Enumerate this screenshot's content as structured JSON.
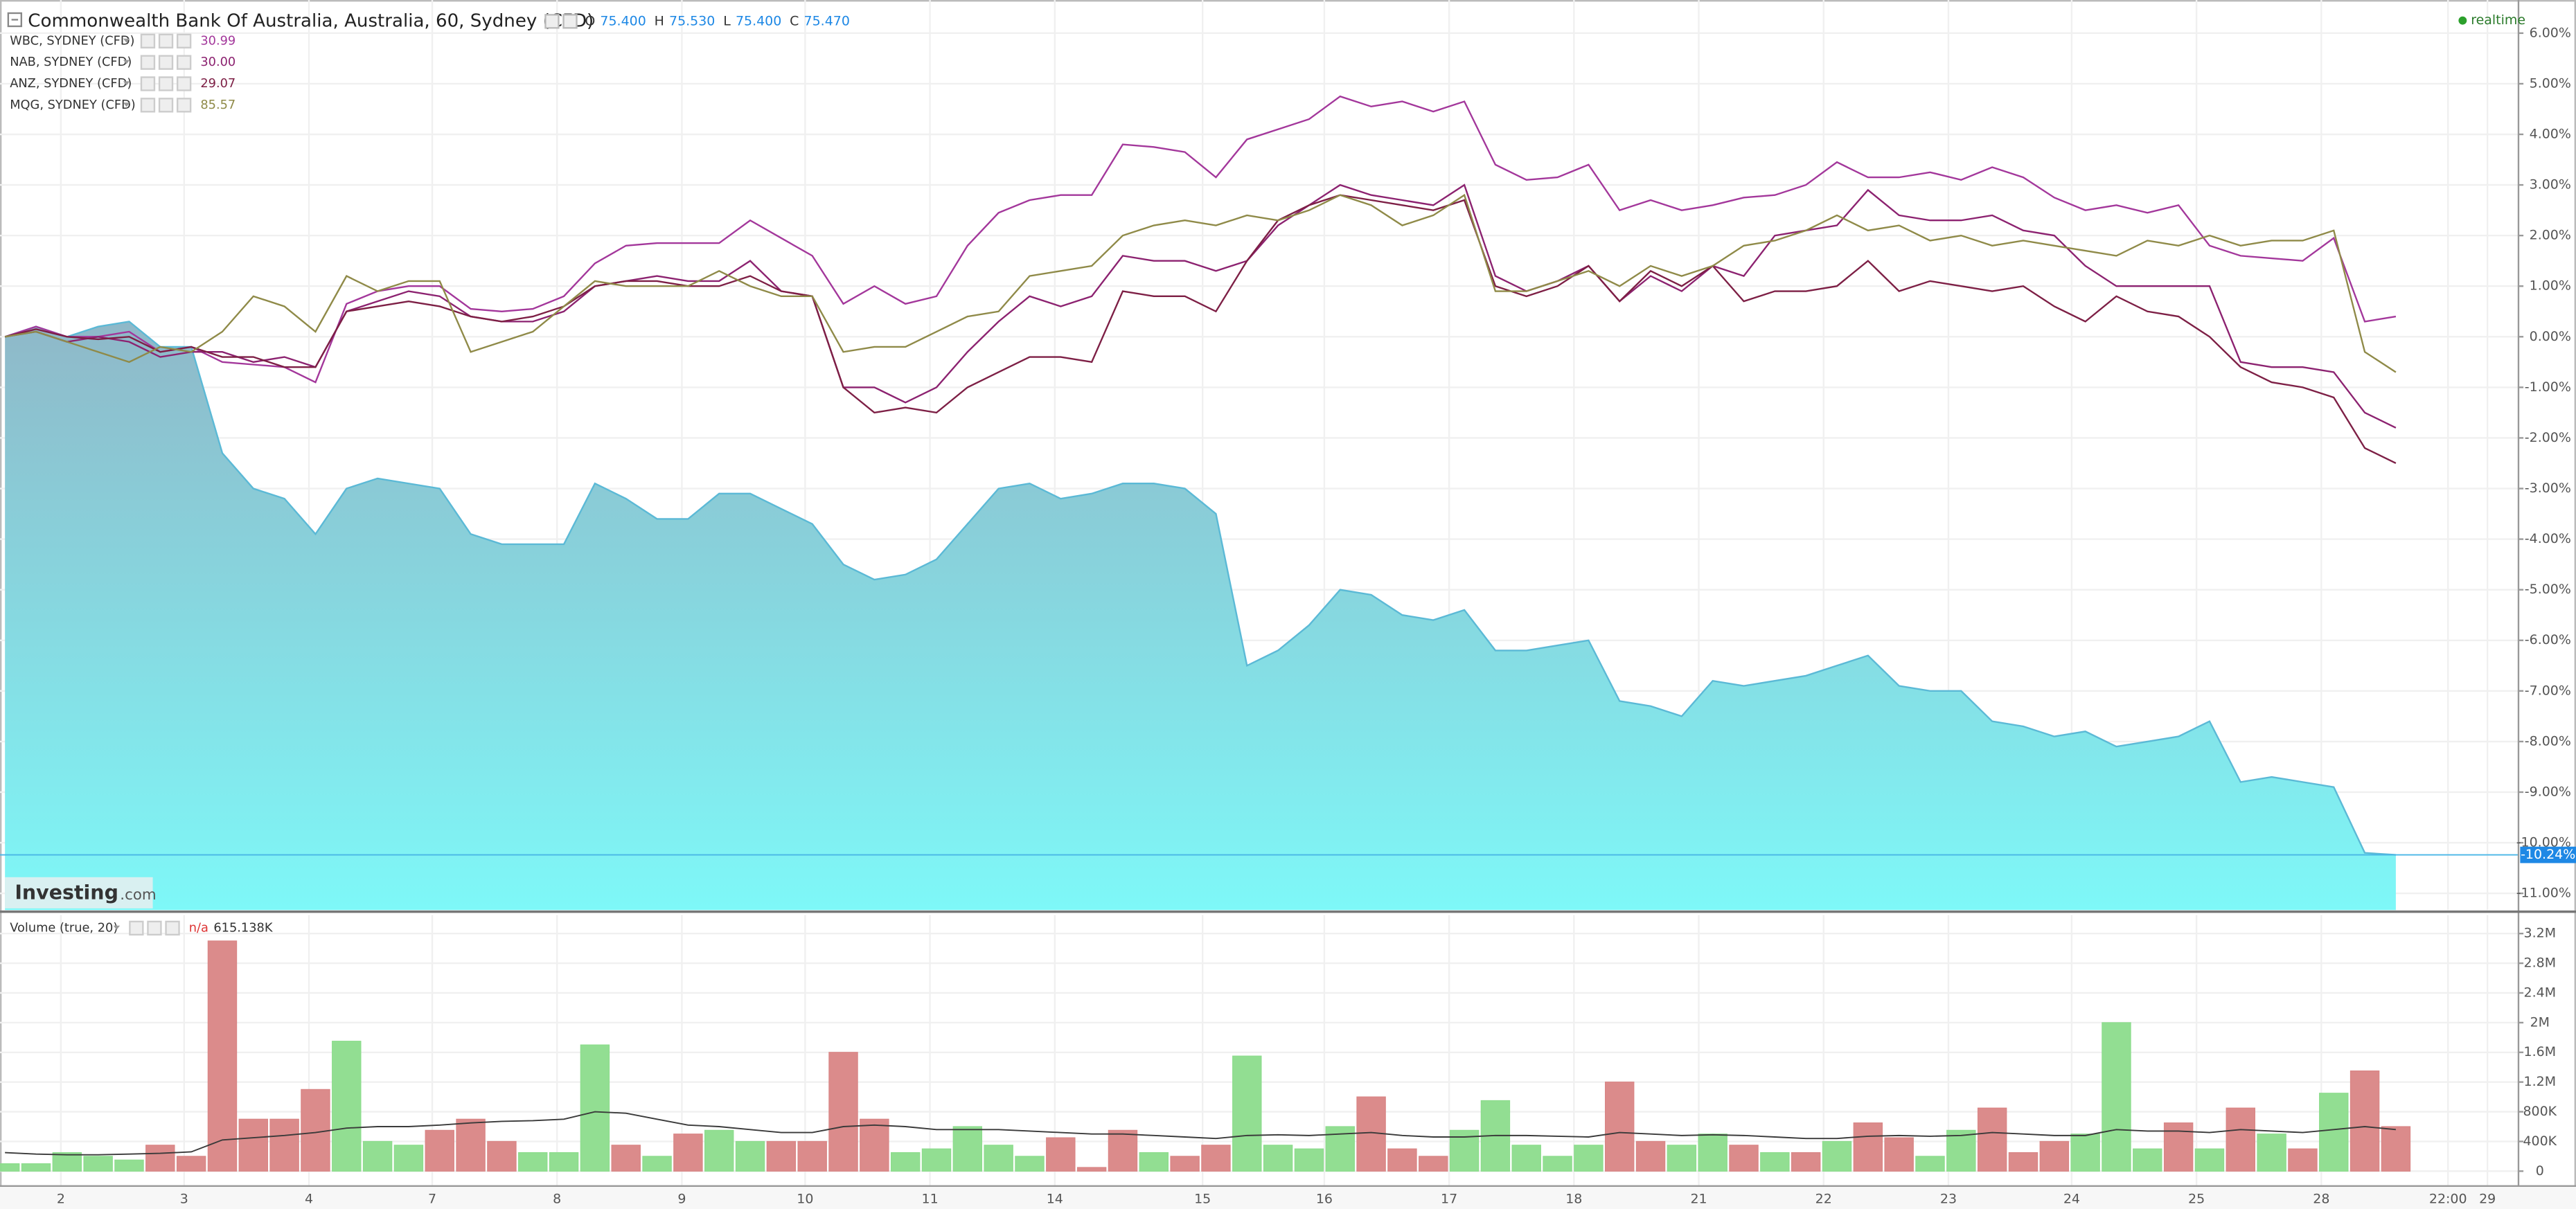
{
  "status": "realtime",
  "watermark": {
    "brand": "Investing",
    "suffix": ".com"
  },
  "chart_data": [
    {
      "type": "line",
      "title": "Commonwealth Bank Of Australia, Australia, 60, Sydney (CFD)",
      "ohlc": [
        {
          "key": "O",
          "price": {
            "value": 75.4,
            "label": "75.400"
          }
        },
        {
          "key": "H",
          "price": {
            "value": 75.53,
            "label": "75.530"
          }
        },
        {
          "key": "L",
          "price": {
            "value": 75.4,
            "label": "75.400"
          }
        },
        {
          "key": "C",
          "price": {
            "value": 75.47,
            "label": "75.470"
          }
        }
      ],
      "x": [
        0,
        1,
        2,
        3,
        4,
        5,
        6,
        7,
        8,
        9,
        10,
        11,
        12,
        13,
        14,
        15,
        16,
        17,
        18,
        19,
        20,
        21,
        22,
        23,
        24,
        25,
        26,
        27,
        28,
        29,
        30,
        31,
        32,
        33,
        34,
        35,
        36,
        37,
        38,
        39,
        40,
        41,
        42,
        43,
        44,
        45,
        46,
        47,
        48,
        49,
        50,
        51,
        52,
        53,
        54,
        55,
        56,
        57,
        58,
        59,
        60,
        61,
        62,
        63,
        64,
        65,
        66,
        67,
        68,
        69,
        70,
        71,
        72,
        73,
        74,
        75,
        76,
        77
      ],
      "xlim": [
        -0.16,
        80.95
      ],
      "ylim": [
        -11.33,
        6.59
      ],
      "yticks": [
        {
          "value": 6,
          "label": "6.00%"
        },
        {
          "value": 5,
          "label": "5.00%"
        },
        {
          "value": 4,
          "label": "4.00%"
        },
        {
          "value": 3,
          "label": "3.00%"
        },
        {
          "value": 2,
          "label": "2.00%"
        },
        {
          "value": 1,
          "label": "1.00%"
        },
        {
          "value": 0,
          "label": "0.00%"
        },
        {
          "value": -1,
          "label": "-1.00%"
        },
        {
          "value": -2,
          "label": "-2.00%"
        },
        {
          "value": -3,
          "label": "-3.00%"
        },
        {
          "value": -4,
          "label": "-4.00%"
        },
        {
          "value": -5,
          "label": "-5.00%"
        },
        {
          "value": -6,
          "label": "-6.00%"
        },
        {
          "value": -7,
          "label": "-7.00%"
        },
        {
          "value": -8,
          "label": "-8.00%"
        },
        {
          "value": -9,
          "label": "-9.00%"
        },
        {
          "value": -10,
          "label": "-10.00%"
        },
        {
          "value": -11,
          "label": "-11.00%"
        }
      ],
      "grid": true,
      "series": [
        {
          "fill": true,
          "color": "#5bb9d6",
          "fill_top": "#8fb8c8",
          "fill_bottom": "#7ef8f8",
          "last": {
            "value": -10.24,
            "label": "-10.24%"
          },
          "values": [
            0,
            0.2,
            0,
            0.2,
            0.3,
            -0.2,
            -0.2,
            -2.3,
            -3.0,
            -3.2,
            -3.9,
            -3.0,
            -2.8,
            -2.9,
            -3.0,
            -3.9,
            -4.1,
            -4.1,
            -4.1,
            -2.9,
            -3.2,
            -3.6,
            -3.6,
            -3.1,
            -3.1,
            -3.4,
            -3.7,
            -4.5,
            -4.8,
            -4.7,
            -4.4,
            -3.7,
            -3.0,
            -2.9,
            -3.2,
            -3.1,
            -2.9,
            -2.9,
            -3.0,
            -3.5,
            -6.5,
            -6.2,
            -5.7,
            -5.0,
            -5.1,
            -5.5,
            -5.6,
            -5.4,
            -6.2,
            -6.2,
            -6.1,
            -6.0,
            -7.2,
            -7.3,
            -7.5,
            -6.8,
            -6.9,
            -6.8,
            -6.7,
            -6.5,
            -6.3,
            -6.9,
            -7.0,
            -7.0,
            -7.6,
            -7.7,
            -7.9,
            -7.8,
            -8.1,
            -8.0,
            -7.9,
            -7.6,
            -8.8,
            -8.7,
            -8.8,
            -8.9,
            -10.2,
            -10.24
          ]
        },
        {
          "name": "WBC, SYDNEY (CFD)",
          "price": 30.99,
          "color": "#a3379b",
          "values": [
            0,
            0.2,
            0,
            0,
            0.1,
            -0.3,
            -0.2,
            -0.5,
            -0.55,
            -0.6,
            -0.9,
            0.65,
            0.9,
            1.0,
            1.0,
            0.55,
            0.5,
            0.55,
            0.8,
            1.45,
            1.8,
            1.85,
            1.85,
            1.85,
            2.3,
            1.95,
            1.6,
            0.65,
            1.0,
            0.65,
            0.8,
            1.8,
            2.45,
            2.7,
            2.8,
            2.8,
            3.8,
            3.75,
            3.65,
            3.15,
            3.9,
            4.1,
            4.3,
            4.75,
            4.55,
            4.65,
            4.45,
            4.65,
            3.4,
            3.1,
            3.15,
            3.4,
            2.5,
            2.7,
            2.5,
            2.6,
            2.75,
            2.8,
            3.0,
            3.45,
            3.15,
            3.15,
            3.25,
            3.1,
            3.35,
            3.15,
            2.75,
            2.5,
            2.6,
            2.45,
            2.6,
            1.8,
            1.6,
            1.55,
            1.5,
            1.95,
            0.3,
            0.4
          ]
        },
        {
          "name": "NAB, SYDNEY (CFD)",
          "price": {
            "value": 30,
            "label": "30.00"
          },
          "color": "#8c2270",
          "values": [
            0,
            0.1,
            -0.1,
            0,
            -0.1,
            -0.4,
            -0.3,
            -0.3,
            -0.5,
            -0.4,
            -0.6,
            0.5,
            0.7,
            0.9,
            0.8,
            0.4,
            0.3,
            0.3,
            0.5,
            1.0,
            1.1,
            1.2,
            1.1,
            1.1,
            1.5,
            0.9,
            0.8,
            -1.0,
            -1.0,
            -1.3,
            -1.0,
            -0.3,
            0.3,
            0.8,
            0.6,
            0.8,
            1.6,
            1.5,
            1.5,
            1.3,
            1.5,
            2.2,
            2.6,
            3.0,
            2.8,
            2.7,
            2.6,
            3.0,
            1.2,
            0.9,
            1.1,
            1.4,
            0.7,
            1.2,
            0.9,
            1.4,
            1.2,
            2.0,
            2.1,
            2.2,
            2.9,
            2.4,
            2.3,
            2.3,
            2.4,
            2.1,
            2.0,
            1.4,
            1.0,
            1.0,
            1.0,
            1.0,
            -0.5,
            -0.6,
            -0.6,
            -0.7,
            -1.5,
            -1.8
          ]
        },
        {
          "name": "ANZ, SYDNEY (CFD)",
          "price": 29.07,
          "color": "#7d1f45",
          "values": [
            0,
            0.15,
            0,
            -0.05,
            0,
            -0.3,
            -0.2,
            -0.4,
            -0.4,
            -0.6,
            -0.6,
            0.5,
            0.6,
            0.7,
            0.6,
            0.4,
            0.3,
            0.4,
            0.6,
            1.0,
            1.1,
            1.1,
            1.0,
            1.0,
            1.2,
            0.9,
            0.8,
            -1.0,
            -1.5,
            -1.4,
            -1.5,
            -1.0,
            -0.7,
            -0.4,
            -0.4,
            -0.5,
            0.9,
            0.8,
            0.8,
            0.5,
            1.5,
            2.3,
            2.6,
            2.8,
            2.7,
            2.6,
            2.5,
            2.7,
            1.0,
            0.8,
            1.0,
            1.4,
            0.7,
            1.3,
            1.0,
            1.4,
            0.7,
            0.9,
            0.9,
            1.0,
            1.5,
            0.9,
            1.1,
            1.0,
            0.9,
            1.0,
            0.6,
            0.3,
            0.8,
            0.5,
            0.4,
            0.0,
            -0.6,
            -0.9,
            -1.0,
            -1.2,
            -2.2,
            -2.5
          ]
        },
        {
          "name": "MQG, SYDNEY (CFD)",
          "price": 85.57,
          "color": "#8f8a48",
          "values": [
            0,
            0.1,
            -0.1,
            -0.3,
            -0.5,
            -0.2,
            -0.3,
            0.1,
            0.8,
            0.6,
            0.1,
            1.2,
            0.9,
            1.1,
            1.1,
            -0.3,
            -0.1,
            0.1,
            0.6,
            1.1,
            1.0,
            1.0,
            1.0,
            1.3,
            1.0,
            0.8,
            0.8,
            -0.3,
            -0.2,
            -0.2,
            0.1,
            0.4,
            0.5,
            1.2,
            1.3,
            1.4,
            2.0,
            2.2,
            2.3,
            2.2,
            2.4,
            2.3,
            2.5,
            2.8,
            2.6,
            2.2,
            2.4,
            2.8,
            0.9,
            0.9,
            1.1,
            1.3,
            1.0,
            1.4,
            1.2,
            1.4,
            1.8,
            1.9,
            2.1,
            2.4,
            2.1,
            2.2,
            1.9,
            2.0,
            1.8,
            1.9,
            1.8,
            1.7,
            1.6,
            1.9,
            1.8,
            2.0,
            1.8,
            1.9,
            1.9,
            2.1,
            -0.3,
            -0.7
          ]
        }
      ]
    },
    {
      "type": "bar",
      "title": "Volume (true, 20)",
      "status": "n/a",
      "last": {
        "value": 615138,
        "label": "615.138K"
      },
      "x": [
        0,
        1,
        2,
        3,
        4,
        5,
        6,
        7,
        8,
        9,
        10,
        11,
        12,
        13,
        14,
        15,
        16,
        17,
        18,
        19,
        20,
        21,
        22,
        23,
        24,
        25,
        26,
        27,
        28,
        29,
        30,
        31,
        32,
        33,
        34,
        35,
        36,
        37,
        38,
        39,
        40,
        41,
        42,
        43,
        44,
        45,
        46,
        47,
        48,
        49,
        50,
        51,
        52,
        53,
        54,
        55,
        56,
        57,
        58,
        59,
        60,
        61,
        62,
        63,
        64,
        65,
        66,
        67,
        68,
        69,
        70,
        71,
        72,
        73,
        74,
        75,
        76,
        77
      ],
      "xlim": [
        -0.16,
        80.95
      ],
      "xticks": [
        {
          "value": 1.8,
          "label": "2"
        },
        {
          "value": 5.77,
          "label": "3"
        },
        {
          "value": 9.79,
          "label": "4"
        },
        {
          "value": 13.76,
          "label": "7"
        },
        {
          "value": 17.78,
          "label": "8"
        },
        {
          "value": 21.8,
          "label": "9"
        },
        {
          "value": 25.77,
          "label": "10"
        },
        {
          "value": 29.79,
          "label": "11"
        },
        {
          "value": 33.81,
          "label": "14"
        },
        {
          "value": 38.57,
          "label": "15"
        },
        {
          "value": 42.49,
          "label": "16"
        },
        {
          "value": 46.51,
          "label": "17"
        },
        {
          "value": 50.53,
          "label": "18"
        },
        {
          "value": 54.55,
          "label": "21"
        },
        {
          "value": 58.57,
          "label": "22"
        },
        {
          "value": 62.59,
          "label": "23"
        },
        {
          "value": 66.56,
          "label": "24"
        },
        {
          "value": 70.58,
          "label": "25"
        },
        {
          "value": 74.6,
          "label": "28"
        },
        {
          "value": 78.68,
          "label": "22:00"
        },
        {
          "value": 79.95,
          "label": "29"
        }
      ],
      "ylim": [
        -200000,
        3450000
      ],
      "yticks": [
        0,
        {
          "value": 400000,
          "label": "400K"
        },
        {
          "value": 800000,
          "label": "800K"
        },
        {
          "value": 1200000,
          "label": "1.2M"
        },
        {
          "value": 1600000,
          "label": "1.6M"
        },
        {
          "value": 2000000,
          "label": "2M"
        },
        {
          "value": 2400000,
          "label": "2.4M"
        },
        {
          "value": 2800000,
          "label": "2.8M"
        },
        {
          "value": 3200000,
          "label": "3.2M"
        }
      ],
      "grid": true,
      "values": [
        100000,
        100000,
        250000,
        200000,
        150000,
        350000,
        200000,
        3100000,
        700000,
        700000,
        1100000,
        1750000,
        400000,
        350000,
        550000,
        700000,
        400000,
        250000,
        250000,
        1700000,
        350000,
        200000,
        500000,
        550000,
        400000,
        400000,
        400000,
        1600000,
        700000,
        250000,
        300000,
        600000,
        350000,
        200000,
        450000,
        50000,
        550000,
        250000,
        200000,
        350000,
        1550000,
        350000,
        300000,
        600000,
        1000000,
        300000,
        200000,
        550000,
        950000,
        350000,
        200000,
        350000,
        1200000,
        400000,
        350000,
        500000,
        350000,
        250000,
        250000,
        400000,
        650000,
        450000,
        200000,
        550000,
        850000,
        250000,
        400000,
        500000,
        2000000,
        300000,
        650000,
        300000,
        850000,
        500000,
        300000,
        1050000,
        1350000,
        600000
      ],
      "colors": [
        "#8cdc8c",
        "#8cdc8c",
        "#8cdc8c",
        "#8cdc8c",
        "#8cdc8c",
        "#d98585",
        "#d98585",
        "#d98585",
        "#d98585",
        "#d98585",
        "#d98585",
        "#8cdc8c",
        "#8cdc8c",
        "#8cdc8c",
        "#d98585",
        "#d98585",
        "#d98585",
        "#8cdc8c",
        "#8cdc8c",
        "#8cdc8c",
        "#d98585",
        "#8cdc8c",
        "#d98585",
        "#8cdc8c",
        "#8cdc8c",
        "#d98585",
        "#d98585",
        "#d98585",
        "#d98585",
        "#8cdc8c",
        "#8cdc8c",
        "#8cdc8c",
        "#8cdc8c",
        "#8cdc8c",
        "#d98585",
        "#d98585",
        "#d98585",
        "#8cdc8c",
        "#d98585",
        "#d98585",
        "#8cdc8c",
        "#8cdc8c",
        "#8cdc8c",
        "#8cdc8c",
        "#d98585",
        "#d98585",
        "#d98585",
        "#8cdc8c",
        "#8cdc8c",
        "#8cdc8c",
        "#8cdc8c",
        "#8cdc8c",
        "#d98585",
        "#d98585",
        "#8cdc8c",
        "#8cdc8c",
        "#d98585",
        "#8cdc8c",
        "#d98585",
        "#8cdc8c",
        "#d98585",
        "#d98585",
        "#8cdc8c",
        "#8cdc8c",
        "#d98585",
        "#d98585",
        "#d98585",
        "#8cdc8c",
        "#8cdc8c",
        "#8cdc8c",
        "#d98585",
        "#8cdc8c",
        "#d98585",
        "#8cdc8c",
        "#d98585",
        "#8cdc8c",
        "#d98585",
        "#d98585"
      ],
      "ma": {
        "color": "#3a3a3a",
        "values": [
          250000,
          230000,
          220000,
          220000,
          230000,
          240000,
          260000,
          420000,
          450000,
          480000,
          520000,
          580000,
          600000,
          600000,
          620000,
          650000,
          670000,
          680000,
          700000,
          800000,
          780000,
          700000,
          620000,
          600000,
          560000,
          520000,
          520000,
          600000,
          620000,
          600000,
          560000,
          560000,
          560000,
          540000,
          520000,
          500000,
          500000,
          480000,
          460000,
          440000,
          480000,
          490000,
          480000,
          500000,
          520000,
          480000,
          460000,
          460000,
          480000,
          480000,
          470000,
          460000,
          520000,
          500000,
          480000,
          490000,
          480000,
          460000,
          440000,
          440000,
          470000,
          480000,
          470000,
          480000,
          520000,
          500000,
          480000,
          480000,
          560000,
          540000,
          540000,
          520000,
          560000,
          540000,
          520000,
          560000,
          600000,
          560000
        ]
      }
    }
  ]
}
